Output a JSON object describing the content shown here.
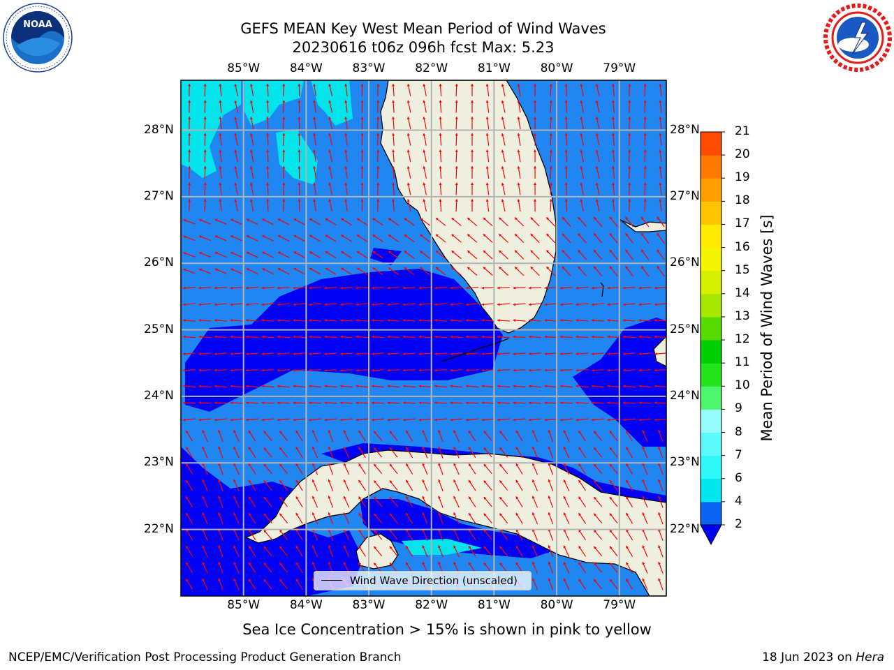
{
  "title_line1": "GEFS MEAN Key West Mean Period of Wind Waves",
  "title_line2": "20230616 t06z 096h fcst   Max: 5.23",
  "map": {
    "lon_labels": [
      "85°W",
      "84°W",
      "83°W",
      "82°W",
      "81°W",
      "80°W",
      "79°W"
    ],
    "lat_labels": [
      "28°N",
      "27°N",
      "26°N",
      "25°N",
      "24°N",
      "23°N",
      "22°N"
    ],
    "lon_values": [
      -85,
      -84,
      -83,
      -82,
      -81,
      -80,
      -79
    ],
    "lat_values": [
      28,
      27,
      26,
      25,
      24,
      23,
      22
    ],
    "extent": {
      "lon_min": -86.0,
      "lon_max": -78.25,
      "lat_min": 21.0,
      "lat_max": 28.75
    },
    "ocean_color": "#1f86f2",
    "land_color": "#efefdf",
    "gridline_color": "#b3b3b3",
    "arrow_color": "#ff0000"
  },
  "legend": {
    "label": "Wind Wave Direction (unscaled)"
  },
  "colorbar": {
    "label": "Mean Period of Wind Waves [s]",
    "ticks": [
      "2",
      "4",
      "6",
      "7",
      "8",
      "9",
      "10",
      "11",
      "12",
      "13",
      "14",
      "15",
      "16",
      "17",
      "18",
      "19",
      "20",
      "21"
    ],
    "colors": [
      "#0a64f0",
      "#00e4ec",
      "#30f8f8",
      "#5cfafa",
      "#96fbfb",
      "#4ef66e",
      "#24e21c",
      "#00ce00",
      "#5adb00",
      "#a6e800",
      "#d4f000",
      "#f5f500",
      "#ffeb00",
      "#ffc400",
      "#ff9f00",
      "#ff7900",
      "#ff4a00",
      "#ff1400"
    ],
    "under_color": "#0000f2"
  },
  "ice_note": "Sea Ice Concentration > 15% is shown in pink to yellow",
  "credit": "NCEP/EMC/Verification Post Processing Product Generation Branch",
  "date_stamp": "18 Jun 2023 on",
  "host": "Hera"
}
